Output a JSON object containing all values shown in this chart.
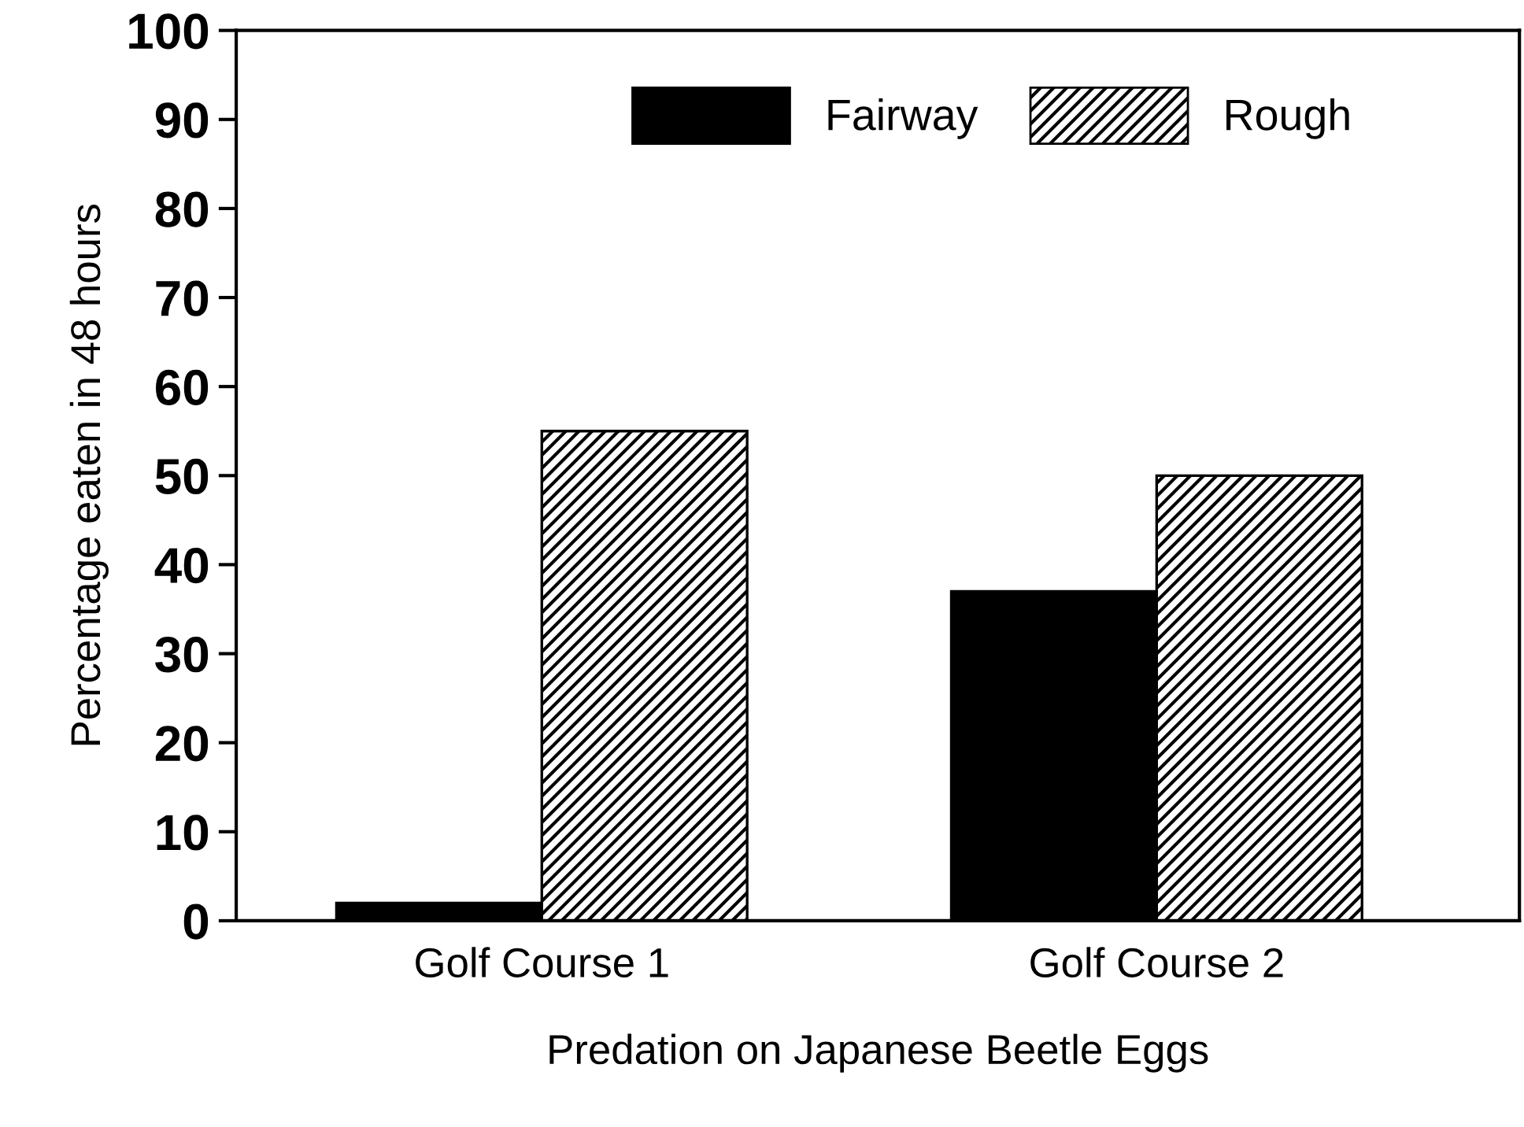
{
  "chart_data": {
    "type": "bar",
    "xlabel": "Predation on Japanese Beetle Eggs",
    "ylabel": "Percentage eaten in 48 hours",
    "categories": [
      "Golf Course 1",
      "Golf Course 2"
    ],
    "series": [
      {
        "name": "Fairway",
        "color": "#000000",
        "values": [
          2,
          37
        ]
      },
      {
        "name": "Rough",
        "color": "#000000",
        "values": [
          55,
          50
        ]
      }
    ],
    "ylim": [
      0,
      100
    ],
    "yticks": [
      0,
      10,
      20,
      30,
      40,
      50,
      60,
      70,
      80,
      90,
      100
    ],
    "grid": false,
    "legend": "top right"
  }
}
